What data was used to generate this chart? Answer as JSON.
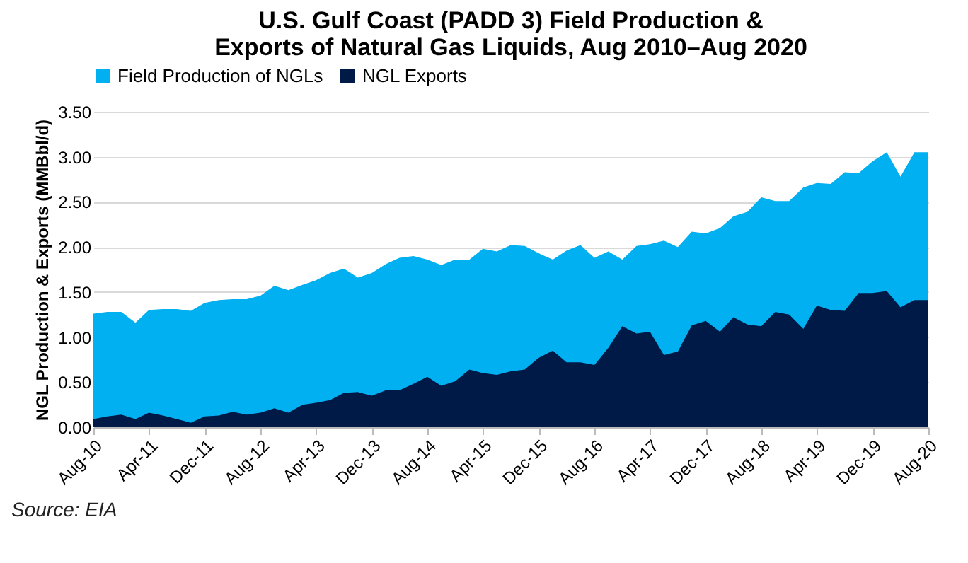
{
  "chart_data": {
    "type": "area",
    "title": [
      "U.S. Gulf Coast (PADD 3) Field Production &",
      "Exports of Natural Gas Liquids, Aug 2010–Aug 2020"
    ],
    "ylabel": "NGL Production & Exports (MMBbl/d)",
    "x": [
      "2010-08",
      "2010-10",
      "2010-12",
      "2011-02",
      "2011-04",
      "2011-06",
      "2011-08",
      "2011-10",
      "2011-12",
      "2012-02",
      "2012-04",
      "2012-06",
      "2012-08",
      "2012-10",
      "2012-12",
      "2013-02",
      "2013-04",
      "2013-06",
      "2013-08",
      "2013-10",
      "2013-12",
      "2014-02",
      "2014-04",
      "2014-06",
      "2014-08",
      "2014-10",
      "2014-12",
      "2015-02",
      "2015-04",
      "2015-06",
      "2015-08",
      "2015-10",
      "2015-12",
      "2016-02",
      "2016-04",
      "2016-06",
      "2016-08",
      "2016-10",
      "2016-12",
      "2017-02",
      "2017-04",
      "2017-06",
      "2017-08",
      "2017-10",
      "2017-12",
      "2018-02",
      "2018-04",
      "2018-06",
      "2018-08",
      "2018-10",
      "2018-12",
      "2019-02",
      "2019-04",
      "2019-06",
      "2019-08",
      "2019-10",
      "2019-12",
      "2020-02",
      "2020-04",
      "2020-06",
      "2020-08"
    ],
    "series": [
      {
        "name": "Field Production of NGLs",
        "color": "#00b0f0",
        "values": [
          1.26,
          1.28,
          1.28,
          1.16,
          1.3,
          1.31,
          1.31,
          1.29,
          1.38,
          1.41,
          1.42,
          1.42,
          1.46,
          1.57,
          1.52,
          1.58,
          1.63,
          1.71,
          1.76,
          1.66,
          1.71,
          1.81,
          1.88,
          1.9,
          1.86,
          1.8,
          1.86,
          1.86,
          1.98,
          1.95,
          2.02,
          2.01,
          1.93,
          1.86,
          1.96,
          2.02,
          1.88,
          1.95,
          1.86,
          2.01,
          2.03,
          2.07,
          2.0,
          2.17,
          2.15,
          2.21,
          2.34,
          2.39,
          2.55,
          2.51,
          2.51,
          2.66,
          2.71,
          2.7,
          2.83,
          2.82,
          2.95,
          3.05,
          2.78,
          3.05,
          3.05
        ]
      },
      {
        "name": "NGL Exports",
        "color": "#001a47",
        "values": [
          0.09,
          0.12,
          0.14,
          0.09,
          0.16,
          0.13,
          0.09,
          0.05,
          0.12,
          0.13,
          0.17,
          0.14,
          0.16,
          0.21,
          0.16,
          0.25,
          0.27,
          0.3,
          0.38,
          0.39,
          0.35,
          0.41,
          0.41,
          0.48,
          0.56,
          0.46,
          0.51,
          0.64,
          0.6,
          0.58,
          0.62,
          0.64,
          0.77,
          0.85,
          0.72,
          0.72,
          0.69,
          0.88,
          1.12,
          1.04,
          1.06,
          0.8,
          0.84,
          1.13,
          1.18,
          1.06,
          1.22,
          1.14,
          1.12,
          1.28,
          1.25,
          1.09,
          1.35,
          1.3,
          1.29,
          1.49,
          1.49,
          1.51,
          1.33,
          1.41,
          1.41
        ]
      }
    ],
    "xlim": [
      "2010-08",
      "2020-08"
    ],
    "xticks": [
      {
        "value": "2010-08",
        "label": "Aug-10"
      },
      {
        "value": "2011-04",
        "label": "Apr-11"
      },
      {
        "value": "2011-12",
        "label": "Dec-11"
      },
      {
        "value": "2012-08",
        "label": "Aug-12"
      },
      {
        "value": "2013-04",
        "label": "Apr-13"
      },
      {
        "value": "2013-12",
        "label": "Dec-13"
      },
      {
        "value": "2014-08",
        "label": "Aug-14"
      },
      {
        "value": "2015-04",
        "label": "Apr-15"
      },
      {
        "value": "2015-12",
        "label": "Dec-15"
      },
      {
        "value": "2016-08",
        "label": "Aug-16"
      },
      {
        "value": "2017-04",
        "label": "Apr-17"
      },
      {
        "value": "2017-12",
        "label": "Dec-17"
      },
      {
        "value": "2018-08",
        "label": "Aug-18"
      },
      {
        "value": "2019-04",
        "label": "Apr-19"
      },
      {
        "value": "2019-12",
        "label": "Dec-19"
      },
      {
        "value": "2020-08",
        "label": "Aug-20"
      }
    ],
    "ylim": [
      0,
      3.5
    ],
    "yticks": [
      {
        "value": 0,
        "label": "0.00"
      },
      {
        "value": 0.5,
        "label": "0.50"
      },
      {
        "value": 1,
        "label": "1.00"
      },
      {
        "value": 1.5,
        "label": "1.50"
      },
      {
        "value": 2,
        "label": "2.00"
      },
      {
        "value": 2.5,
        "label": "2.50"
      },
      {
        "value": 3,
        "label": "3.00"
      },
      {
        "value": 3.5,
        "label": "3.50"
      }
    ],
    "grid": "y",
    "legend": "top",
    "annotations": [
      "Source: EIA"
    ]
  }
}
